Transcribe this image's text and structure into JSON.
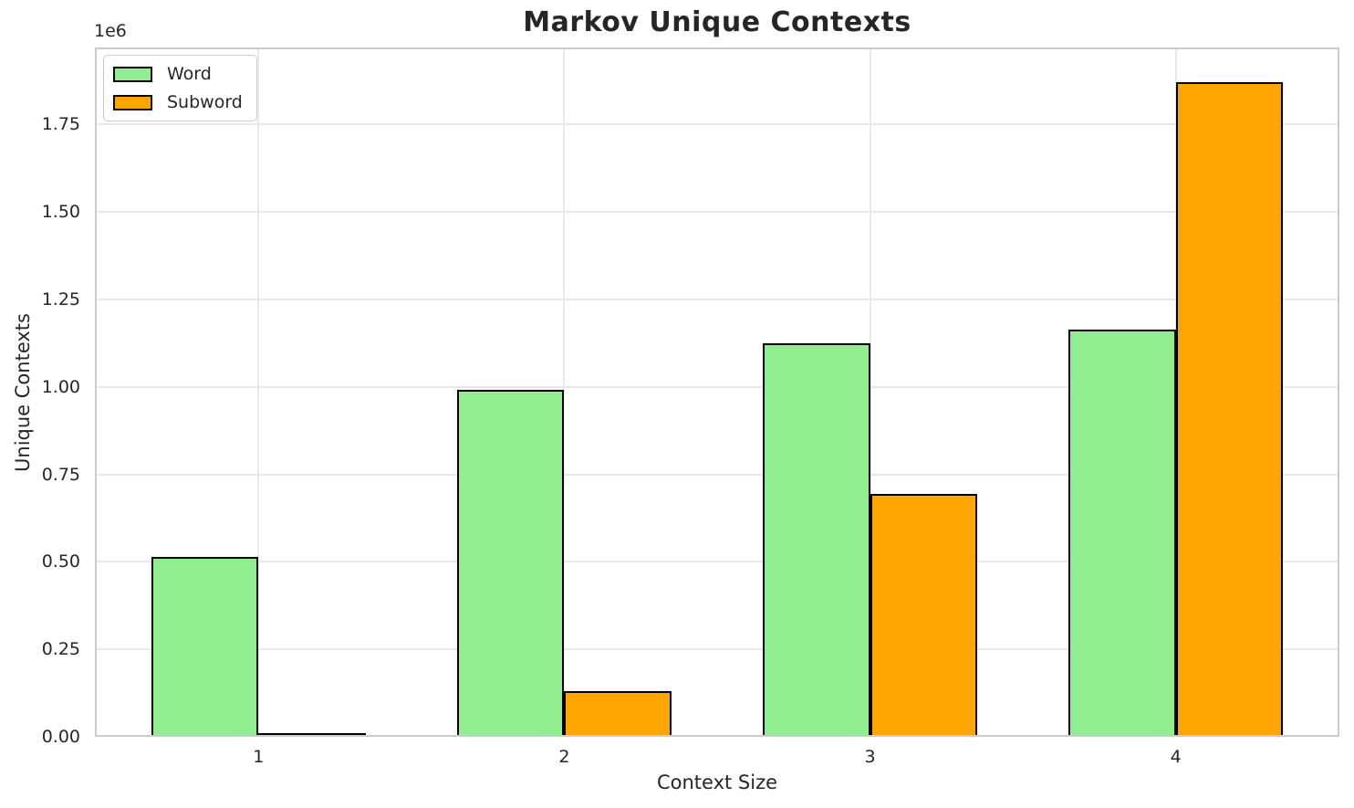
{
  "chart_data": {
    "type": "bar",
    "title": "Markov Unique Contexts",
    "xlabel": "Context Size",
    "ylabel": "Unique Contexts",
    "y_offset_text": "1e6",
    "categories": [
      1,
      2,
      3,
      4
    ],
    "xtick_labels": [
      "1",
      "2",
      "3",
      "4"
    ],
    "series": [
      {
        "name": "Word",
        "color": "#90EE90",
        "values": [
          515000,
          992000,
          1125000,
          1165000
        ]
      },
      {
        "name": "Subword",
        "color": "#FFA500",
        "values": [
          7000,
          130000,
          695000,
          1870000
        ]
      }
    ],
    "series_offsets": [
      -0.175,
      0.175
    ],
    "bar_width": 0.35,
    "bar_edge_color": "#000000",
    "xlim": [
      0.465,
      4.535
    ],
    "ylim": [
      0,
      1970000
    ],
    "yticks": [
      0,
      250000,
      500000,
      750000,
      1000000,
      1250000,
      1500000,
      1750000
    ],
    "ytick_labels": [
      "0.00",
      "0.25",
      "0.50",
      "0.75",
      "1.00",
      "1.25",
      "1.50",
      "1.75"
    ],
    "grid": true,
    "legend": {
      "position": "upper left"
    },
    "text_color": "#262626"
  }
}
